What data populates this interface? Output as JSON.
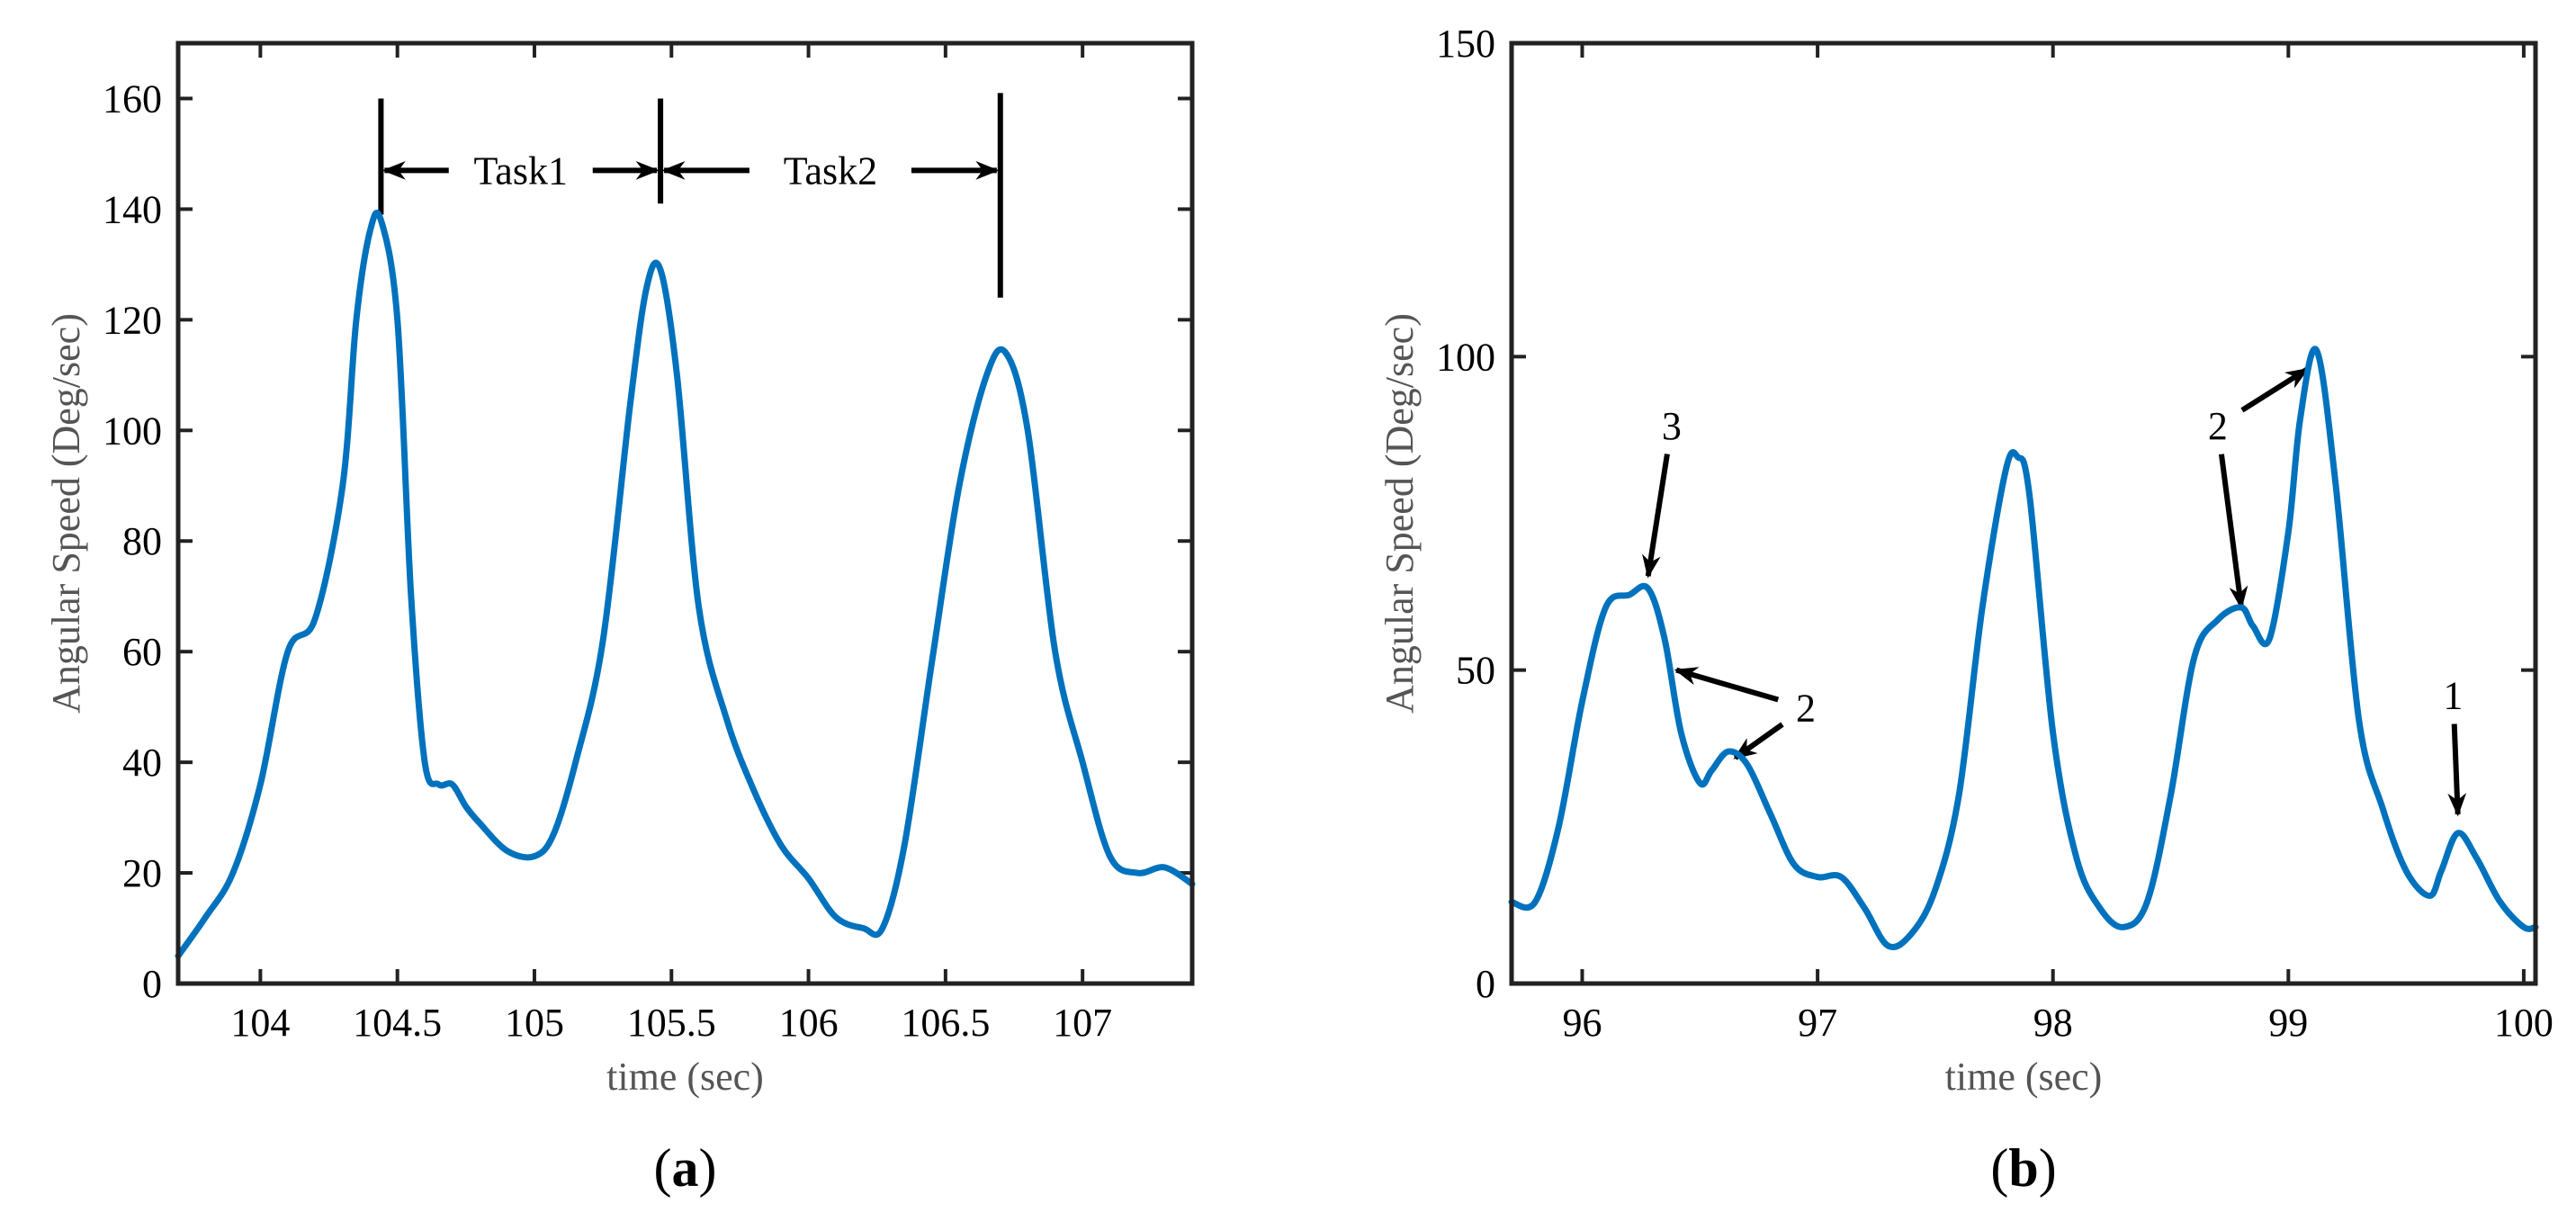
{
  "chart_data": [
    {
      "type": "line",
      "panel_label": "a",
      "xlabel": "time (sec)",
      "ylabel": "Angular Speed (Deg/sec)",
      "xlim": [
        103.7,
        107.4
      ],
      "ylim": [
        0,
        170
      ],
      "xticks": [
        104,
        104.5,
        105,
        105.5,
        106,
        106.5,
        107
      ],
      "xtick_labels": [
        "104",
        "104.5",
        "105",
        "105.5",
        "106",
        "106.5",
        "107"
      ],
      "yticks": [
        0,
        20,
        40,
        60,
        80,
        100,
        120,
        140,
        160
      ],
      "ytick_labels": [
        "0",
        "20",
        "40",
        "60",
        "80",
        "100",
        "120",
        "140",
        "160"
      ],
      "color": "#0072BD",
      "series": [
        {
          "name": "angular speed",
          "x": [
            103.7,
            103.8,
            103.9,
            104.0,
            104.1,
            104.2,
            104.3,
            104.35,
            104.4,
            104.44,
            104.5,
            104.55,
            104.6,
            104.65,
            104.7,
            104.75,
            104.8,
            104.9,
            105.0,
            105.07,
            105.15,
            105.25,
            105.35,
            105.41,
            105.46,
            105.52,
            105.6,
            105.7,
            105.8,
            105.9,
            106.0,
            106.1,
            106.2,
            106.27,
            106.35,
            106.45,
            106.55,
            106.65,
            106.72,
            106.8,
            106.9,
            107.0,
            107.1,
            107.2,
            107.3,
            107.4
          ],
          "y": [
            5,
            12,
            20,
            36,
            60,
            66,
            90,
            120,
            136,
            138,
            120,
            70,
            40,
            36,
            36,
            32,
            29,
            24,
            23,
            27,
            40,
            62,
            105,
            126,
            129,
            110,
            68,
            48,
            35,
            25,
            19,
            12,
            10,
            10,
            25,
            58,
            90,
            110,
            114,
            100,
            60,
            40,
            23,
            20,
            21,
            18
          ]
        }
      ],
      "annotations": [
        {
          "text": "Task1",
          "x_start": 104.44,
          "x_end": 105.46,
          "y": 147
        },
        {
          "text": "Task2",
          "x_start": 105.46,
          "x_end": 106.7,
          "y": 147
        }
      ],
      "markers_x": [
        104.44,
        105.46,
        106.7
      ]
    },
    {
      "type": "line",
      "panel_label": "b",
      "xlabel": "time (sec)",
      "ylabel": "Angular Speed (Deg/sec)",
      "xlim": [
        95.7,
        100.05
      ],
      "ylim": [
        0,
        150
      ],
      "xticks": [
        96,
        97,
        98,
        99,
        100
      ],
      "xtick_labels": [
        "96",
        "97",
        "98",
        "99",
        "100"
      ],
      "yticks": [
        0,
        50,
        100,
        150
      ],
      "ytick_labels": [
        "0",
        "50",
        "100",
        "150"
      ],
      "color": "#0072BD",
      "series": [
        {
          "name": "angular speed",
          "x": [
            95.7,
            95.8,
            95.9,
            96.0,
            96.1,
            96.2,
            96.28,
            96.35,
            96.42,
            96.5,
            96.55,
            96.62,
            96.7,
            96.8,
            96.9,
            97.0,
            97.1,
            97.2,
            97.3,
            97.4,
            97.5,
            97.6,
            97.7,
            97.8,
            97.85,
            97.9,
            98.0,
            98.1,
            98.2,
            98.3,
            98.4,
            98.5,
            98.6,
            98.7,
            98.8,
            98.85,
            98.92,
            99.0,
            99.05,
            99.12,
            99.2,
            99.3,
            99.4,
            99.5,
            99.6,
            99.65,
            99.72,
            99.8,
            99.9,
            100.0,
            100.05
          ],
          "y": [
            13,
            13,
            25,
            45,
            60,
            62,
            63,
            55,
            40,
            32,
            34,
            37,
            35,
            27,
            19,
            17,
            17,
            12,
            6,
            8,
            15,
            30,
            60,
            82,
            84,
            78,
            40,
            20,
            12,
            9,
            13,
            30,
            52,
            58,
            60,
            57,
            55,
            72,
            90,
            101,
            80,
            42,
            28,
            18,
            14,
            18,
            24,
            20,
            13,
            9,
            9
          ]
        }
      ],
      "annotations": [
        {
          "text": "3",
          "label_x": 96.38,
          "label_y": 89,
          "tip_x": 96.28,
          "tip_y": 65
        },
        {
          "text": "2",
          "label_x": 96.95,
          "label_y": 44,
          "tip_x": 96.4,
          "tip_y": 50
        },
        {
          "text": "2",
          "label_x": 96.95,
          "label_y": 44,
          "tip_x": 96.65,
          "tip_y": 36
        },
        {
          "text": "2",
          "label_x": 98.7,
          "label_y": 89,
          "tip_x": 99.08,
          "tip_y": 98
        },
        {
          "text": "2",
          "label_x": 98.7,
          "label_y": 89,
          "tip_x": 98.8,
          "tip_y": 60
        },
        {
          "text": "1",
          "label_x": 99.7,
          "label_y": 46,
          "tip_x": 99.72,
          "tip_y": 27
        }
      ]
    }
  ]
}
